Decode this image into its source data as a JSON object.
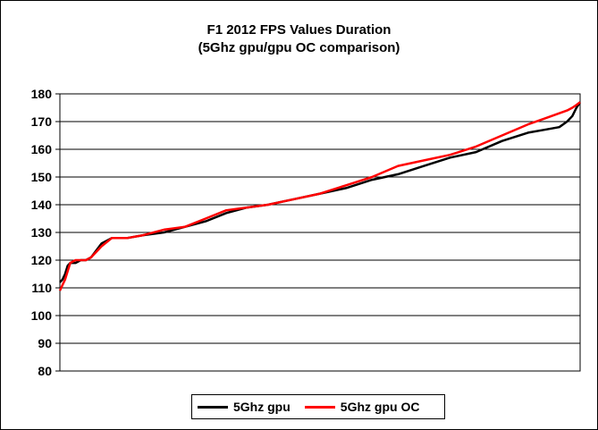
{
  "chart_data": {
    "type": "line",
    "title": "F1 2012 FPS Values Duration",
    "subtitle": "(5Ghz gpu/gpu OC comparison)",
    "xlabel": "",
    "ylabel": "",
    "ylim": [
      80,
      180
    ],
    "yticks": [
      "180",
      "170",
      "160",
      "150",
      "140",
      "130",
      "120",
      "110",
      "100",
      "90",
      "80"
    ],
    "grid": true,
    "legend_position": "bottom",
    "x": [
      0,
      0.5,
      1,
      1.5,
      2,
      3,
      4,
      5,
      6,
      8,
      10,
      13,
      16,
      20,
      24,
      28,
      32,
      36,
      40,
      45,
      50,
      55,
      60,
      65,
      70,
      75,
      80,
      85,
      90,
      93,
      96,
      97.5,
      98.5,
      99.3,
      100
    ],
    "series": [
      {
        "name": "5Ghz gpu",
        "color": "#000000",
        "values": [
          112,
          113,
          115,
          118,
          119,
          119,
          120,
          120,
          121,
          126,
          128,
          128,
          129,
          130,
          132,
          134,
          137,
          139,
          140,
          142,
          144,
          146,
          149,
          151,
          154,
          157,
          159,
          163,
          166,
          167,
          168,
          170,
          172,
          175,
          177
        ]
      },
      {
        "name": "5Ghz gpu OC",
        "color": "#ff0000",
        "values": [
          109,
          111,
          113,
          116,
          119,
          120,
          120,
          120,
          121,
          125,
          128,
          128,
          129,
          131,
          132,
          135,
          138,
          139,
          140,
          142,
          144,
          147,
          150,
          154,
          156,
          158,
          161,
          165,
          169,
          171,
          173,
          174,
          175,
          176,
          177
        ]
      }
    ]
  }
}
